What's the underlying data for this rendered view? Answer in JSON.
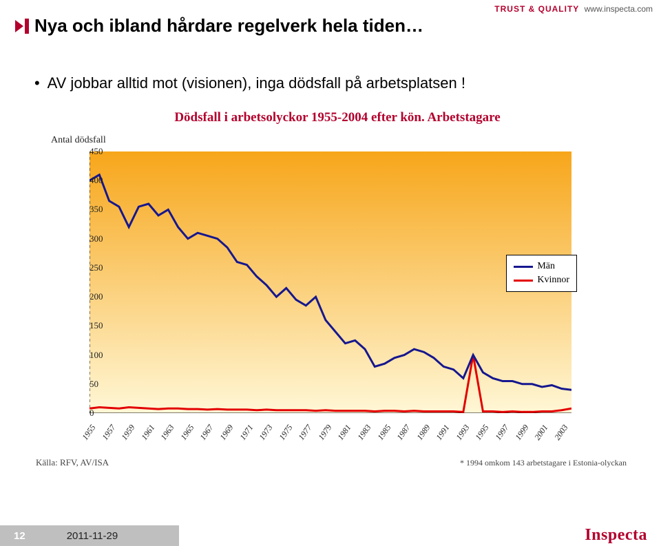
{
  "header": {
    "tagline": "TRUST & QUALITY",
    "url": "www.inspecta.com"
  },
  "title": "Nya och ibland hårdare regelverk hela tiden…",
  "bullet": "AV jobbar alltid mot (visionen), inga dödsfall på arbetsplatsen !",
  "chart": {
    "type": "line",
    "title": "Dödsfall i arbetsolyckor 1955-2004 efter kön. Arbetstagare",
    "ylabel": "Antal dödsfall",
    "source": "Källa: RFV, AV/ISA",
    "footnote": "* 1994 omkom 143 arbetstagare i Estonia-olyckan",
    "ylim": [
      0,
      450
    ],
    "ytick_step": 50,
    "x_start": 1955,
    "x_end": 2004,
    "xtick_step": 2,
    "background_color": "#ffffff",
    "grid_color": "#e0e0e0",
    "gradient_top": "#f7a61a",
    "gradient_bottom": "#fff7d6",
    "line_width": 3,
    "legend": [
      {
        "label": "Män",
        "color": "#16178f"
      },
      {
        "label": "Kvinnor",
        "color": "#e30000"
      }
    ],
    "series": {
      "men": {
        "color": "#16178f",
        "years": [
          1955,
          1956,
          1957,
          1958,
          1959,
          1960,
          1961,
          1962,
          1963,
          1964,
          1965,
          1966,
          1967,
          1968,
          1969,
          1970,
          1971,
          1972,
          1973,
          1974,
          1975,
          1976,
          1977,
          1978,
          1979,
          1980,
          1981,
          1982,
          1983,
          1984,
          1985,
          1986,
          1987,
          1988,
          1989,
          1990,
          1991,
          1992,
          1993,
          1994,
          1995,
          1996,
          1997,
          1998,
          1999,
          2000,
          2001,
          2002,
          2003,
          2004
        ],
        "values": [
          400,
          410,
          365,
          355,
          320,
          355,
          360,
          340,
          350,
          320,
          300,
          310,
          305,
          300,
          285,
          260,
          255,
          235,
          220,
          200,
          215,
          195,
          185,
          200,
          160,
          140,
          120,
          125,
          110,
          80,
          85,
          95,
          100,
          110,
          105,
          95,
          80,
          75,
          60,
          100,
          70,
          60,
          55,
          55,
          50,
          50,
          45,
          48,
          42,
          40
        ]
      },
      "women": {
        "color": "#e30000",
        "years": [
          1955,
          1956,
          1957,
          1958,
          1959,
          1960,
          1961,
          1962,
          1963,
          1964,
          1965,
          1966,
          1967,
          1968,
          1969,
          1970,
          1971,
          1972,
          1973,
          1974,
          1975,
          1976,
          1977,
          1978,
          1979,
          1980,
          1981,
          1982,
          1983,
          1984,
          1985,
          1986,
          1987,
          1988,
          1989,
          1990,
          1991,
          1992,
          1993,
          1994,
          1995,
          1996,
          1997,
          1998,
          1999,
          2000,
          2001,
          2002,
          2003,
          2004
        ],
        "values": [
          8,
          10,
          9,
          8,
          10,
          9,
          8,
          7,
          8,
          8,
          7,
          7,
          6,
          7,
          6,
          6,
          6,
          5,
          6,
          5,
          5,
          5,
          5,
          4,
          5,
          4,
          4,
          4,
          4,
          3,
          4,
          4,
          3,
          4,
          3,
          3,
          3,
          3,
          2,
          100,
          3,
          3,
          2,
          3,
          2,
          2,
          3,
          3,
          5,
          8
        ]
      }
    }
  },
  "footer": {
    "page": "12",
    "date": "2011-11-29",
    "logo": "Inspecta"
  },
  "colors": {
    "brand": "#b3002d",
    "title_marker": "#b3002d"
  }
}
